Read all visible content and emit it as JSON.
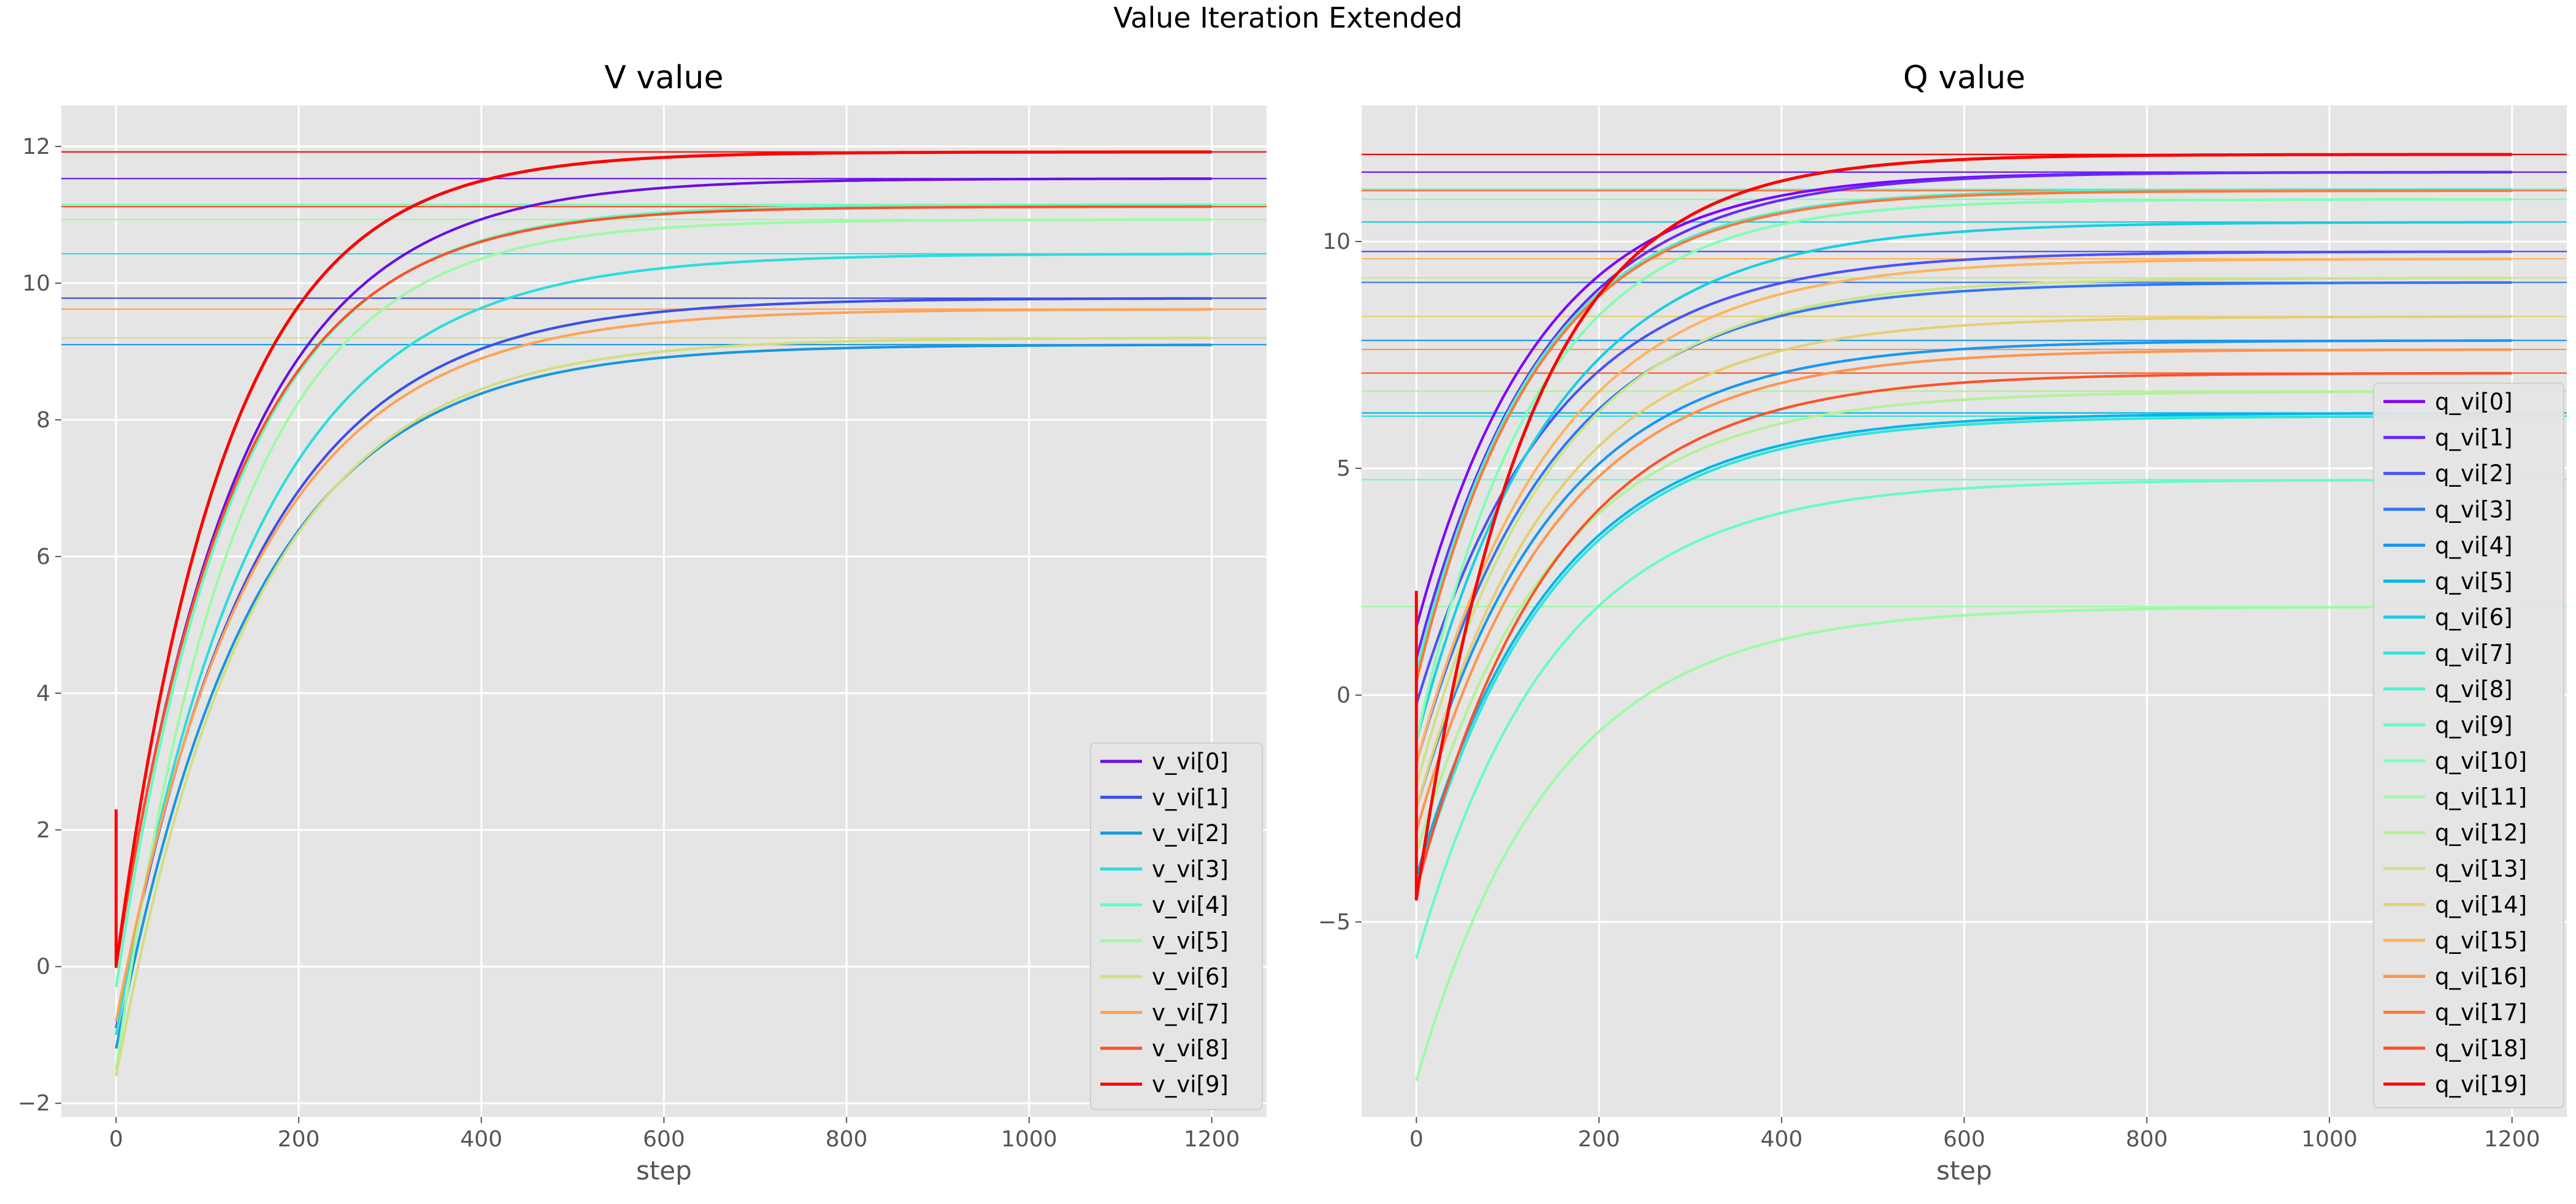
{
  "figure": {
    "suptitle": "Value Iteration Extended"
  },
  "chart_data": [
    {
      "type": "line",
      "title": "V value",
      "xlabel": "step",
      "ylabel": "",
      "xlim": [
        -60,
        1260
      ],
      "ylim": [
        -2.2,
        12.6
      ],
      "xticks": [
        0,
        200,
        400,
        600,
        800,
        1000,
        1200
      ],
      "yticks": [
        -2,
        0,
        2,
        4,
        6,
        8,
        10,
        12
      ],
      "grid": true,
      "legend": "lower-right",
      "step_max": 1200,
      "series": [
        {
          "name": "v_vi[0]",
          "color": "#6a0ee4",
          "start": 0.0,
          "min": 0.0,
          "final": 11.53,
          "tau": 135
        },
        {
          "name": "v_vi[1]",
          "color": "#3f4fe9",
          "start": -0.9,
          "min": -0.9,
          "final": 9.78,
          "tau": 150
        },
        {
          "name": "v_vi[2]",
          "color": "#1996de",
          "start": -1.2,
          "min": -1.2,
          "final": 9.1,
          "tau": 150
        },
        {
          "name": "v_vi[3]",
          "color": "#2adddd",
          "start": -1.0,
          "min": -1.0,
          "final": 10.43,
          "tau": 150
        },
        {
          "name": "v_vi[4]",
          "color": "#62fbc4",
          "start": -0.3,
          "min": -0.3,
          "final": 11.15,
          "tau": 130
        },
        {
          "name": "v_vi[5]",
          "color": "#9cfaa4",
          "start": -1.5,
          "min": -1.5,
          "final": 10.93,
          "tau": 130
        },
        {
          "name": "v_vi[6]",
          "color": "#d4dd80",
          "start": -1.6,
          "min": -1.6,
          "final": 9.2,
          "tau": 150
        },
        {
          "name": "v_vi[7]",
          "color": "#ffa256",
          "start": -0.8,
          "min": -0.8,
          "final": 9.62,
          "tau": 150
        },
        {
          "name": "v_vi[8]",
          "color": "#ff4f28",
          "start": 0.0,
          "min": 0.0,
          "final": 11.12,
          "tau": 130
        },
        {
          "name": "v_vi[9]",
          "color": "#ff0000",
          "start": 2.3,
          "min": 0.0,
          "final": 11.92,
          "tau": 120
        }
      ]
    },
    {
      "type": "line",
      "title": "Q value",
      "xlabel": "step",
      "ylabel": "",
      "xlim": [
        -60,
        1260
      ],
      "ylim": [
        -9.3,
        13.0
      ],
      "xticks": [
        0,
        200,
        400,
        600,
        800,
        1000,
        1200
      ],
      "yticks": [
        -5,
        0,
        5,
        10
      ],
      "grid": true,
      "legend": "right",
      "step_max": 1200,
      "series": [
        {
          "name": "q_vi[0]",
          "color": "#7f00ff",
          "start": 1.5,
          "min": 1.5,
          "final": 11.53,
          "tau": 135
        },
        {
          "name": "q_vi[1]",
          "color": "#6629fe",
          "start": 0.8,
          "min": 0.8,
          "final": 11.53,
          "tau": 140
        },
        {
          "name": "q_vi[2]",
          "color": "#4c50fc",
          "start": -0.2,
          "min": -0.2,
          "final": 9.78,
          "tau": 150
        },
        {
          "name": "q_vi[3]",
          "color": "#3176f8",
          "start": -1.5,
          "min": -1.5,
          "final": 9.1,
          "tau": 150
        },
        {
          "name": "q_vi[4]",
          "color": "#1996f3",
          "start": -2.5,
          "min": -2.5,
          "final": 7.82,
          "tau": 150
        },
        {
          "name": "q_vi[5]",
          "color": "#00b5eb",
          "start": -4.0,
          "min": -4.0,
          "final": 6.22,
          "tau": 150
        },
        {
          "name": "q_vi[6]",
          "color": "#19cee3",
          "start": -1.0,
          "min": -1.0,
          "final": 10.43,
          "tau": 150
        },
        {
          "name": "q_vi[7]",
          "color": "#31e4d9",
          "start": -4.2,
          "min": -4.2,
          "final": 6.15,
          "tau": 150
        },
        {
          "name": "q_vi[8]",
          "color": "#4cf2ce",
          "start": 0.5,
          "min": 0.5,
          "final": 11.15,
          "tau": 130
        },
        {
          "name": "q_vi[9]",
          "color": "#66fcc2",
          "start": -5.8,
          "min": -5.8,
          "final": 4.75,
          "tau": 150
        },
        {
          "name": "q_vi[10]",
          "color": "#80ffb4",
          "start": -1.0,
          "min": -1.0,
          "final": 10.93,
          "tau": 130
        },
        {
          "name": "q_vi[11]",
          "color": "#99fca4",
          "start": -8.5,
          "min": -8.5,
          "final": 1.95,
          "tau": 150
        },
        {
          "name": "q_vi[12]",
          "color": "#b2f295",
          "start": -3.5,
          "min": -3.5,
          "final": 6.7,
          "tau": 150
        },
        {
          "name": "q_vi[13]",
          "color": "#cce484",
          "start": -2.0,
          "min": -2.0,
          "final": 9.2,
          "tau": 150
        },
        {
          "name": "q_vi[14]",
          "color": "#e6ce73",
          "start": -2.5,
          "min": -2.5,
          "final": 8.35,
          "tau": 150
        },
        {
          "name": "q_vi[15]",
          "color": "#ffb360",
          "start": -1.5,
          "min": -1.5,
          "final": 9.62,
          "tau": 150
        },
        {
          "name": "q_vi[16]",
          "color": "#ff954e",
          "start": -3.0,
          "min": -3.0,
          "final": 7.62,
          "tau": 150
        },
        {
          "name": "q_vi[17]",
          "color": "#ff763b",
          "start": 0.3,
          "min": 0.3,
          "final": 11.12,
          "tau": 130
        },
        {
          "name": "q_vi[18]",
          "color": "#ff5027",
          "start": -4.3,
          "min": -4.3,
          "final": 7.1,
          "tau": 150
        },
        {
          "name": "q_vi[19]",
          "color": "#ff0000",
          "start": 2.3,
          "min": -4.5,
          "final": 11.92,
          "tau": 120
        }
      ]
    }
  ]
}
